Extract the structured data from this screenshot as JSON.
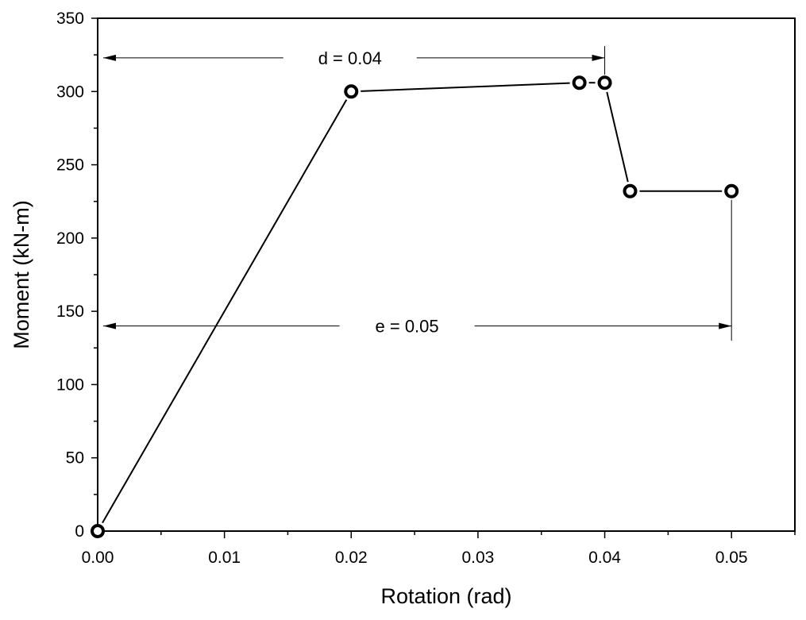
{
  "chart_data": {
    "type": "line",
    "xlabel": "Rotation (rad)",
    "ylabel": "Moment (kN-m)",
    "xlim": [
      0,
      0.055
    ],
    "ylim": [
      0,
      350
    ],
    "x_ticks": [
      "0.00",
      "0.01",
      "0.02",
      "0.03",
      "0.04",
      "0.05"
    ],
    "y_ticks": [
      "0",
      "50",
      "100",
      "150",
      "200",
      "250",
      "300",
      "350"
    ],
    "grid": false,
    "series": [
      {
        "x": [
          0.0,
          0.02,
          0.038,
          0.04,
          0.042,
          0.05
        ],
        "y": [
          0,
          300,
          306,
          306,
          232,
          232
        ]
      }
    ],
    "annotations": [
      {
        "label": "d = 0.04",
        "y": 323,
        "x_from": 0.0,
        "x_to": 0.04
      },
      {
        "label": "e = 0.05",
        "y": 140,
        "x_from": 0.0,
        "x_to": 0.05
      }
    ],
    "colors": {
      "line": "#000000",
      "marker": "#000000",
      "background": "#ffffff"
    }
  }
}
